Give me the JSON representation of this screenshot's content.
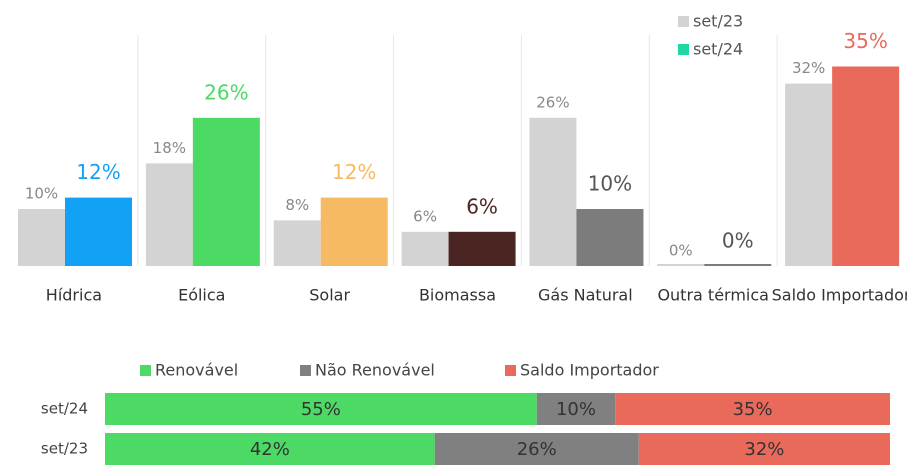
{
  "chart_data": [
    {
      "type": "bar",
      "categories": [
        "Hídrica",
        "Eólica",
        "Solar",
        "Biomassa",
        "Gás Natural",
        "Outra térmica",
        "Saldo Importador"
      ],
      "series": [
        {
          "name": "set/23",
          "color": "#d3d3d3",
          "values": [
            10,
            18,
            8,
            6,
            26,
            0,
            32
          ],
          "value_labels": [
            "10%",
            "18%",
            "8%",
            "6%",
            "26%",
            "0%",
            "32%"
          ]
        },
        {
          "name": "set/24",
          "color": "#1fd6a4",
          "colors": [
            "#12a2f5",
            "#4cd964",
            "#f6b964",
            "#4b2522",
            "#7c7c7c",
            "#7c7c7c",
            "#e9695a"
          ],
          "values": [
            12,
            26,
            12,
            6,
            10,
            0,
            35
          ],
          "value_labels": [
            "12%",
            "26%",
            "12%",
            "6%",
            "10%",
            "0%",
            "35%"
          ]
        }
      ],
      "ylim": [
        0,
        40
      ]
    },
    {
      "type": "stacked-bar-horizontal",
      "categories": [
        "set/24",
        "set/23"
      ],
      "series": [
        {
          "name": "Renovável",
          "color": "#4cd964",
          "values": [
            55,
            42
          ],
          "value_labels": [
            "55%",
            "42%"
          ]
        },
        {
          "name": "Não Renovável",
          "color": "#808080",
          "values": [
            10,
            26
          ],
          "value_labels": [
            "10%",
            "26%"
          ]
        },
        {
          "name": "Saldo Importador",
          "color": "#e9695a",
          "values": [
            35,
            32
          ],
          "value_labels": [
            "35%",
            "32%"
          ]
        }
      ],
      "xlim": [
        0,
        100
      ]
    }
  ]
}
